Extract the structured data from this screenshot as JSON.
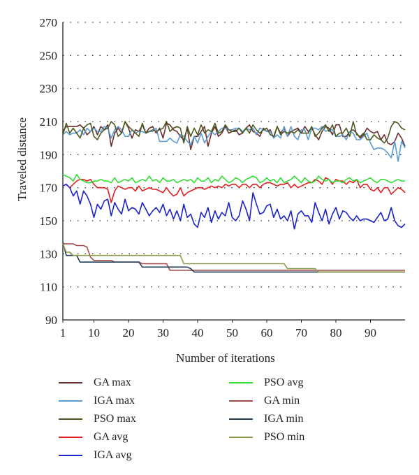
{
  "chart_data": {
    "type": "line",
    "title": "",
    "xlabel": "Number of iterations",
    "ylabel": "Traveled distance",
    "xlim": [
      1,
      100
    ],
    "ylim": [
      90,
      270
    ],
    "xticks": [
      1,
      10,
      20,
      30,
      40,
      50,
      60,
      70,
      80,
      90
    ],
    "yticks": [
      90,
      110,
      130,
      150,
      170,
      190,
      210,
      230,
      250,
      270
    ],
    "grid": "horizontal dotted",
    "legend_position": "bottom, two columns",
    "x": [
      1,
      2,
      3,
      4,
      5,
      6,
      7,
      8,
      9,
      10,
      11,
      12,
      13,
      14,
      15,
      16,
      17,
      18,
      19,
      20,
      21,
      22,
      23,
      24,
      25,
      26,
      27,
      28,
      29,
      30,
      31,
      32,
      33,
      34,
      35,
      36,
      37,
      38,
      39,
      40,
      41,
      42,
      43,
      44,
      45,
      46,
      47,
      48,
      49,
      50,
      51,
      52,
      53,
      54,
      55,
      56,
      57,
      58,
      59,
      60,
      61,
      62,
      63,
      64,
      65,
      66,
      67,
      68,
      69,
      70,
      71,
      72,
      73,
      74,
      75,
      76,
      77,
      78,
      79,
      80,
      81,
      82,
      83,
      84,
      85,
      86,
      87,
      88,
      89,
      90,
      91,
      92,
      93,
      94,
      95,
      96,
      97,
      98,
      99,
      100
    ],
    "series": [
      {
        "name": "GA max",
        "color": "#6b2d2d",
        "values": [
          204,
          207,
          207,
          207,
          207,
          208,
          206,
          202,
          204,
          207,
          202,
          207,
          205,
          208,
          195,
          203,
          206,
          203,
          210,
          206,
          200,
          205,
          204,
          208,
          203,
          206,
          207,
          203,
          206,
          200,
          209,
          208,
          205,
          204,
          201,
          199,
          206,
          193,
          201,
          201,
          204,
          207,
          195,
          203,
          207,
          201,
          203,
          207,
          203,
          204,
          205,
          202,
          203,
          206,
          208,
          204,
          203,
          201,
          206,
          204,
          205,
          200,
          207,
          203,
          206,
          201,
          204,
          205,
          206,
          203,
          207,
          204,
          206,
          202,
          199,
          204,
          207,
          206,
          202,
          208,
          208,
          201,
          201,
          204,
          205,
          203,
          200,
          202,
          206,
          204,
          203,
          204,
          199,
          202,
          197,
          196,
          198,
          203,
          200,
          195
        ]
      },
      {
        "name": "IGA max",
        "color": "#5b9bd5",
        "values": [
          202,
          204,
          202,
          203,
          203,
          205,
          202,
          206,
          204,
          206,
          204,
          204,
          207,
          206,
          200,
          205,
          207,
          205,
          201,
          201,
          205,
          203,
          204,
          204,
          203,
          204,
          204,
          206,
          198,
          198,
          198,
          200,
          198,
          197,
          202,
          201,
          198,
          196,
          201,
          197,
          203,
          197,
          201,
          204,
          202,
          204,
          206,
          206,
          205,
          205,
          206,
          206,
          204,
          206,
          205,
          206,
          202,
          206,
          205,
          204,
          204,
          200,
          202,
          200,
          207,
          201,
          207,
          201,
          199,
          205,
          205,
          199,
          206,
          206,
          205,
          207,
          204,
          205,
          205,
          201,
          201,
          202,
          199,
          204,
          203,
          199,
          199,
          201,
          203,
          197,
          193,
          194,
          194,
          193,
          191,
          188,
          198,
          186,
          198,
          194
        ]
      },
      {
        "name": "PSO max",
        "color": "#4a5a1f",
        "values": [
          202,
          209,
          203,
          206,
          203,
          200,
          206,
          208,
          209,
          201,
          199,
          203,
          205,
          206,
          210,
          208,
          201,
          203,
          210,
          207,
          205,
          203,
          201,
          209,
          203,
          204,
          205,
          204,
          205,
          206,
          210,
          204,
          206,
          207,
          206,
          197,
          207,
          201,
          206,
          202,
          208,
          203,
          205,
          204,
          209,
          203,
          204,
          208,
          205,
          204,
          204,
          206,
          203,
          206,
          203,
          208,
          205,
          203,
          205,
          206,
          202,
          201,
          207,
          202,
          204,
          203,
          204,
          203,
          205,
          203,
          203,
          203,
          207,
          201,
          203,
          206,
          208,
          204,
          208,
          201,
          203,
          203,
          206,
          201,
          210,
          202,
          201,
          203,
          199,
          199,
          202,
          200,
          199,
          197,
          200,
          207,
          210,
          209,
          206,
          205
        ]
      },
      {
        "name": "GA avg",
        "color": "#e02020",
        "values": [
          171,
          172,
          170,
          172,
          174,
          175,
          175,
          174,
          175,
          172,
          170,
          170,
          170,
          169,
          161,
          168,
          171,
          170,
          169,
          170,
          170,
          168,
          171,
          168,
          169,
          170,
          169,
          169,
          168,
          167,
          170,
          167,
          165,
          166,
          170,
          165,
          167,
          168,
          169,
          170,
          170,
          169,
          170,
          171,
          170,
          171,
          170,
          172,
          171,
          172,
          172,
          170,
          172,
          172,
          170,
          172,
          172,
          170,
          172,
          173,
          173,
          172,
          171,
          172,
          172,
          173,
          170,
          172,
          170,
          171,
          172,
          173,
          173,
          175,
          174,
          172,
          176,
          175,
          172,
          175,
          174,
          174,
          172,
          174,
          173,
          175,
          170,
          172,
          172,
          169,
          168,
          170,
          167,
          170,
          170,
          166,
          168,
          170,
          169,
          167
        ]
      },
      {
        "name": "IGA avg",
        "color": "#1a22c8",
        "values": [
          171,
          172,
          170,
          165,
          168,
          160,
          168,
          165,
          160,
          152,
          160,
          157,
          162,
          163,
          153,
          161,
          157,
          154,
          163,
          156,
          158,
          157,
          154,
          161,
          157,
          153,
          156,
          158,
          155,
          160,
          153,
          157,
          151,
          156,
          150,
          160,
          152,
          154,
          148,
          146,
          155,
          152,
          158,
          149,
          156,
          151,
          155,
          153,
          161,
          152,
          150,
          153,
          162,
          157,
          150,
          167,
          160,
          154,
          155,
          159,
          160,
          152,
          157,
          151,
          153,
          150,
          156,
          145,
          154,
          156,
          153,
          153,
          149,
          161,
          155,
          150,
          157,
          148,
          154,
          158,
          151,
          156,
          155,
          152,
          150,
          153,
          150,
          151,
          151,
          150,
          149,
          152,
          155,
          150,
          151,
          158,
          150,
          147,
          146,
          148
        ]
      },
      {
        "name": "PSO avg",
        "color": "#33dd33",
        "values": [
          178,
          177,
          176,
          174,
          178,
          175,
          174,
          173,
          173,
          174,
          174,
          175,
          174,
          174,
          173,
          176,
          173,
          174,
          175,
          174,
          176,
          173,
          174,
          175,
          174,
          177,
          174,
          175,
          173,
          176,
          174,
          174,
          175,
          173,
          174,
          175,
          174,
          175,
          173,
          176,
          174,
          174,
          176,
          173,
          175,
          174,
          177,
          175,
          173,
          174,
          176,
          175,
          173,
          175,
          176,
          177,
          176,
          173,
          174,
          176,
          174,
          175,
          173,
          176,
          173,
          174,
          175,
          177,
          175,
          173,
          176,
          174,
          173,
          174,
          177,
          175,
          174,
          175,
          173,
          174,
          174,
          173,
          175,
          176,
          174,
          175,
          173,
          174,
          175,
          176,
          174,
          173,
          175,
          175,
          174,
          173,
          174,
          175,
          174,
          174
        ]
      },
      {
        "name": "GA min",
        "color": "#a34a4a",
        "values": [
          136,
          136,
          136,
          136,
          135,
          135,
          135,
          134,
          128,
          126,
          126,
          126,
          126,
          126,
          126,
          125,
          125,
          125,
          125,
          125,
          125,
          125,
          125,
          124,
          124,
          124,
          124,
          124,
          124,
          124,
          124,
          120,
          120,
          120,
          120,
          120,
          120,
          120,
          120,
          120,
          120,
          120,
          120,
          120,
          120,
          120,
          120,
          120,
          120,
          120,
          120,
          120,
          120,
          120,
          120,
          120,
          120,
          120,
          120,
          120,
          120,
          120,
          120,
          120,
          120,
          120,
          120,
          120,
          120,
          120,
          120,
          120,
          120,
          120,
          120,
          120,
          120,
          120,
          120,
          120,
          120,
          120,
          120,
          120,
          120,
          120,
          120,
          120,
          120,
          120,
          120,
          120,
          120,
          120,
          120,
          120,
          120,
          120,
          120,
          120
        ]
      },
      {
        "name": "IGA min",
        "color": "#1f3b55",
        "values": [
          137,
          129,
          129,
          129,
          129,
          125,
          125,
          125,
          125,
          125,
          125,
          125,
          125,
          125,
          125,
          125,
          125,
          125,
          125,
          125,
          125,
          125,
          125,
          122,
          122,
          122,
          122,
          122,
          122,
          122,
          122,
          122,
          122,
          122,
          122,
          122,
          122,
          121,
          119,
          119,
          119,
          119,
          119,
          119,
          119,
          119,
          119,
          119,
          119,
          119,
          119,
          119,
          119,
          119,
          119,
          119,
          119,
          119,
          119,
          119,
          119,
          119,
          119,
          119,
          119,
          119,
          119,
          119,
          119,
          119,
          119,
          119,
          119,
          119,
          119,
          119,
          119,
          119,
          119,
          119,
          119,
          119,
          119,
          119,
          119,
          119,
          119,
          119,
          119,
          119,
          119,
          119,
          119,
          119,
          119,
          119,
          119,
          119,
          119,
          119
        ]
      },
      {
        "name": "PSO min",
        "color": "#8c9a4a",
        "values": [
          136,
          131,
          131,
          129,
          129,
          129,
          129,
          129,
          129,
          129,
          129,
          129,
          129,
          129,
          129,
          129,
          129,
          129,
          129,
          129,
          129,
          129,
          129,
          129,
          129,
          129,
          129,
          129,
          129,
          129,
          129,
          129,
          129,
          129,
          129,
          124,
          124,
          124,
          124,
          124,
          124,
          124,
          124,
          124,
          124,
          124,
          124,
          124,
          124,
          124,
          124,
          124,
          124,
          124,
          124,
          124,
          124,
          124,
          124,
          124,
          124,
          124,
          124,
          124,
          124,
          121,
          121,
          121,
          121,
          121,
          121,
          121,
          121,
          121,
          119,
          119,
          119,
          119,
          119,
          119,
          119,
          119,
          119,
          119,
          119,
          119,
          119,
          119,
          119,
          119,
          119,
          119,
          119,
          119,
          119,
          119,
          119,
          119,
          119,
          119
        ]
      }
    ],
    "legend_columns": [
      [
        "GA max",
        "IGA max",
        "PSO max",
        "GA avg",
        "IGA avg"
      ],
      [
        "PSO avg",
        "GA min",
        "IGA min",
        "PSO min"
      ]
    ]
  }
}
